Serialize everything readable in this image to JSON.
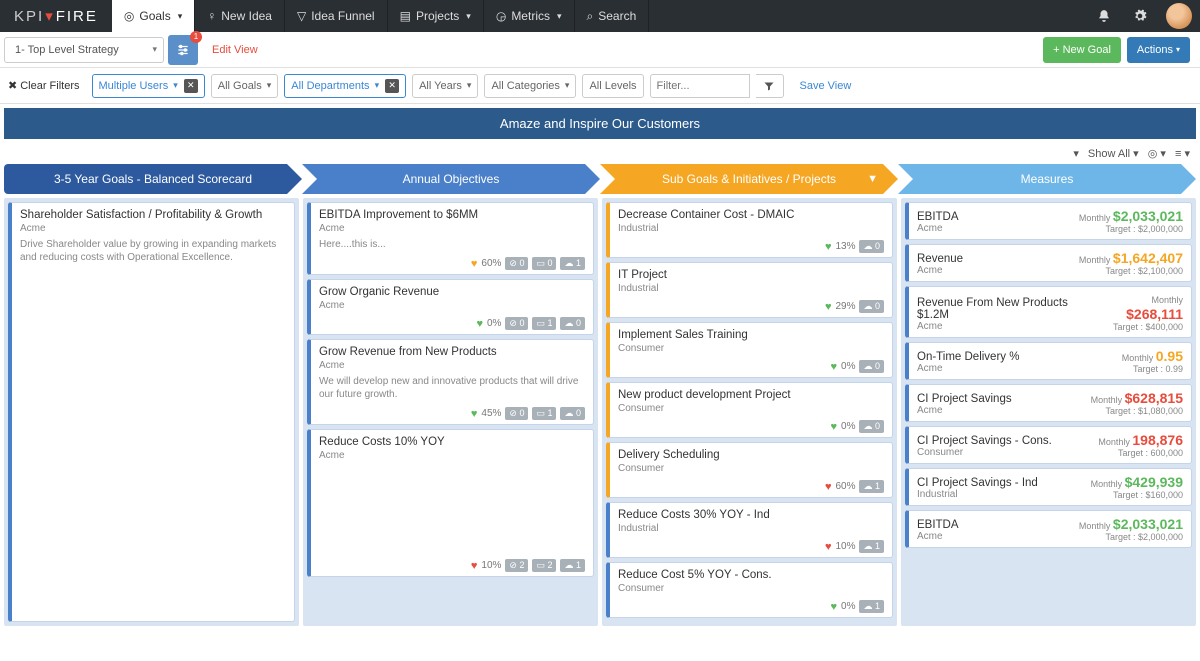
{
  "brand": {
    "part1": "KPI",
    "part2": "FIRE"
  },
  "nav": {
    "goals": "Goals",
    "newIdea": "New Idea",
    "ideaFunnel": "Idea Funnel",
    "projects": "Projects",
    "metrics": "Metrics",
    "search": "Search"
  },
  "toolbar": {
    "strategyDropdown": "1- Top Level Strategy",
    "slidersBadge": "1",
    "editView": "Edit View",
    "newGoal": "+ New Goal",
    "actions": "Actions"
  },
  "filters": {
    "clear": "Clear Filters",
    "users": "Multiple Users",
    "goals": "All Goals",
    "departments": "All Departments",
    "years": "All Years",
    "categories": "All Categories",
    "levels": "All Levels",
    "searchPlaceholder": "Filter...",
    "saveView": "Save View"
  },
  "banner": "Amaze and Inspire Our Customers",
  "showAll": "Show All",
  "columns": {
    "c1": "3-5 Year Goals - Balanced Scorecard",
    "c2": "Annual Objectives",
    "c3": "Sub Goals & Initiatives / Projects",
    "c4": "Measures"
  },
  "col1": [
    {
      "title": "Shareholder Satisfaction / Profitability & Growth",
      "sub": "Acme",
      "desc": "Drive Shareholder value by growing in expanding markets and reducing costs with Operational Excellence."
    }
  ],
  "col2": [
    {
      "title": "EBITDA Improvement to $6MM",
      "sub": "Acme",
      "desc": "Here....this is...",
      "heart": "o",
      "pct": "60%",
      "pills": [
        "0",
        "0",
        "1"
      ]
    },
    {
      "title": "Grow Organic Revenue",
      "sub": "Acme",
      "heart": "g",
      "pct": "0%",
      "pills": [
        "0",
        "1",
        "0"
      ]
    },
    {
      "title": "Grow Revenue from New Products",
      "sub": "Acme",
      "desc": "We will develop new and innovative products that will drive our future growth.",
      "heart": "g",
      "pct": "45%",
      "pills": [
        "0",
        "1",
        "0"
      ]
    },
    {
      "title": "Reduce Costs 10% YOY",
      "sub": "Acme",
      "heart": "r",
      "pct": "10%",
      "pills": [
        "2",
        "2",
        "1"
      ],
      "tall": true
    }
  ],
  "col3": [
    {
      "title": "Decrease Container Cost - DMAIC",
      "sub": "Industrial",
      "heart": "g",
      "pct": "13%",
      "pill": "0",
      "bar": "orange"
    },
    {
      "title": "IT Project",
      "sub": "Industrial",
      "heart": "g",
      "pct": "29%",
      "pill": "0",
      "bar": "orange"
    },
    {
      "title": "Implement Sales Training",
      "sub": "Consumer",
      "heart": "g",
      "pct": "0%",
      "pill": "0",
      "bar": "orange"
    },
    {
      "title": "New product development Project",
      "sub": "Consumer",
      "heart": "g",
      "pct": "0%",
      "pill": "0",
      "bar": "orange"
    },
    {
      "title": "Delivery Scheduling",
      "sub": "Consumer",
      "heart": "r",
      "pct": "60%",
      "pill": "1",
      "bar": "orange"
    },
    {
      "title": "Reduce Costs 30% YOY - Ind",
      "sub": "Industrial",
      "heart": "r",
      "pct": "10%",
      "pill": "1",
      "bar": "blue"
    },
    {
      "title": "Reduce Cost 5% YOY - Cons.",
      "sub": "Consumer",
      "heart": "g",
      "pct": "0%",
      "pill": "1",
      "bar": "blue"
    }
  ],
  "measures": [
    {
      "title": "EBITDA",
      "sub": "Acme",
      "period": "Monthly",
      "amount": "$2,033,021",
      "cls": "g",
      "target": "Target : $2,000,000"
    },
    {
      "title": "Revenue",
      "sub": "Acme",
      "period": "Monthly",
      "amount": "$1,642,407",
      "cls": "o",
      "target": "Target : $2,100,000"
    },
    {
      "title": "Revenue From New Products $1.2M",
      "sub": "Acme",
      "period": "Monthly",
      "amount": "$268,111",
      "cls": "r",
      "target": "Target : $400,000"
    },
    {
      "title": "On-Time Delivery %",
      "sub": "Acme",
      "period": "Monthly",
      "amount": "0.95",
      "cls": "o",
      "target": "Target : 0.99"
    },
    {
      "title": "CI Project Savings",
      "sub": "Acme",
      "period": "Monthly",
      "amount": "$628,815",
      "cls": "r",
      "target": "Target : $1,080,000"
    },
    {
      "title": "CI Project Savings - Cons.",
      "sub": "Consumer",
      "period": "Monthly",
      "amount": "198,876",
      "cls": "r",
      "target": "Target : 600,000"
    },
    {
      "title": "CI Project Savings - Ind",
      "sub": "Industrial",
      "period": "Monthly",
      "amount": "$429,939",
      "cls": "g",
      "target": "Target : $160,000"
    },
    {
      "title": "EBITDA",
      "sub": "Acme",
      "period": "Monthly",
      "amount": "$2,033,021",
      "cls": "g",
      "target": "Target : $2,000,000"
    }
  ],
  "colors": {
    "navBg": "#2a2f34",
    "arrow1": "#2d5a9e",
    "arrow2": "#4a7fc9",
    "arrow3": "#f5a623",
    "arrow4": "#6eb5e8",
    "green": "#5cb85c",
    "red": "#e74c3c",
    "blueBtn": "#337ab7",
    "colBg": "#d9e4f2"
  }
}
